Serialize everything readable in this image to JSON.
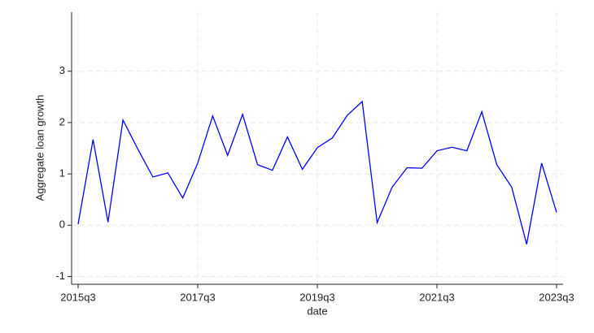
{
  "chart_data": {
    "type": "line",
    "x_label": "date",
    "y_label": "Aggregate loan growth",
    "categories": [
      "2015q3",
      null,
      null,
      null,
      null,
      null,
      null,
      null,
      "2017q3",
      null,
      null,
      null,
      null,
      null,
      null,
      null,
      "2019q3",
      null,
      null,
      null,
      null,
      null,
      null,
      null,
      "2021q3",
      null,
      null,
      null,
      null,
      null,
      null,
      null,
      "2023q3"
    ],
    "values": [
      0.02,
      1.67,
      0.06,
      2.05,
      1.48,
      0.94,
      1.02,
      0.53,
      1.21,
      2.13,
      1.36,
      2.16,
      1.18,
      1.07,
      1.72,
      1.09,
      1.51,
      1.7,
      2.14,
      2.41,
      0.05,
      0.74,
      1.12,
      1.11,
      1.45,
      1.52,
      1.45,
      2.21,
      1.18,
      0.74,
      -0.37,
      1.21,
      0.25
    ],
    "color": "#0000ff",
    "ylim": [
      -1.15,
      4.15
    ],
    "yticks": [
      -1,
      0,
      1,
      2,
      3
    ],
    "grid": true
  }
}
